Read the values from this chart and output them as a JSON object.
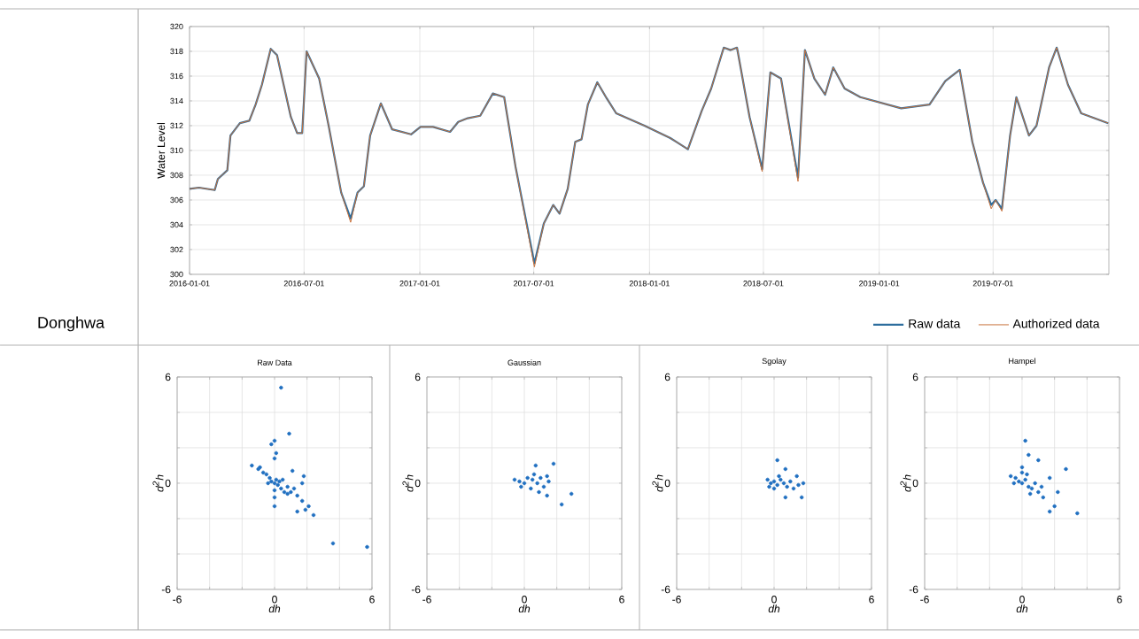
{
  "chart_data": [
    {
      "type": "other",
      "title": "Donghwa"
    },
    {
      "type": "line",
      "ylabel": "Water Level",
      "x": [
        "2016-01-01",
        "2016-01-16",
        "2016-02-10",
        "2016-02-15",
        "2016-03-01",
        "2016-03-06",
        "2016-03-21",
        "2016-04-05",
        "2016-04-15",
        "2016-04-25",
        "2016-05-09",
        "2016-05-19",
        "2016-06-10",
        "2016-06-20",
        "2016-06-28",
        "2016-07-05",
        "2016-07-25",
        "2016-08-09",
        "2016-08-29",
        "2016-09-13",
        "2016-09-24",
        "2016-10-04",
        "2016-10-14",
        "2016-10-31",
        "2016-11-18",
        "2016-12-18",
        "2017-01-02",
        "2017-01-22",
        "2017-02-18",
        "2017-03-03",
        "2017-03-18",
        "2017-04-07",
        "2017-04-27",
        "2017-05-15",
        "2017-06-02",
        "2017-07-02",
        "2017-07-17",
        "2017-08-01",
        "2017-08-11",
        "2017-08-24",
        "2017-09-05",
        "2017-09-15",
        "2017-09-25",
        "2017-10-10",
        "2017-10-25",
        "2017-11-09",
        "2017-12-24",
        "2018-02-03",
        "2018-03-03",
        "2018-03-25",
        "2018-04-09",
        "2018-04-29",
        "2018-05-10",
        "2018-05-20",
        "2018-06-09",
        "2018-06-29",
        "2018-07-12",
        "2018-07-29",
        "2018-08-25",
        "2018-09-05",
        "2018-09-20",
        "2018-10-07",
        "2018-10-20",
        "2018-11-07",
        "2018-12-02",
        "2019-02-05",
        "2019-03-22",
        "2019-04-16",
        "2019-05-09",
        "2019-05-29",
        "2019-06-15",
        "2019-06-28",
        "2019-07-05",
        "2019-07-15",
        "2019-07-28",
        "2019-08-07",
        "2019-08-27",
        "2019-09-08",
        "2019-09-28",
        "2019-10-10",
        "2019-10-28",
        "2019-11-18",
        "2019-12-31"
      ],
      "series": [
        {
          "name": "Raw data",
          "color": "#2e6e9e",
          "values": [
            306.9,
            307.0,
            306.8,
            307.7,
            308.4,
            311.2,
            312.2,
            312.4,
            313.7,
            315.3,
            318.2,
            317.7,
            312.7,
            311.4,
            311.4,
            318.0,
            315.8,
            312.0,
            306.6,
            304.5,
            306.6,
            307.1,
            311.2,
            313.8,
            311.7,
            311.3,
            311.9,
            311.9,
            311.5,
            312.3,
            312.6,
            312.8,
            314.6,
            314.3,
            308.7,
            300.9,
            304.1,
            305.6,
            304.9,
            306.9,
            310.7,
            310.9,
            313.7,
            315.5,
            314.2,
            313.0,
            312.0,
            311.0,
            310.1,
            313.2,
            315.0,
            318.3,
            318.1,
            318.3,
            312.7,
            308.5,
            316.3,
            315.8,
            307.8,
            318.1,
            315.8,
            314.5,
            316.7,
            315.0,
            314.3,
            313.4,
            313.7,
            315.6,
            316.5,
            310.7,
            307.4,
            305.6,
            306.0,
            305.3,
            311.2,
            314.3,
            311.2,
            312.0,
            316.7,
            318.3,
            315.3,
            313.0,
            312.2
          ]
        },
        {
          "name": "Authorized data",
          "color": "#c8703a",
          "values": [
            306.9,
            307.0,
            306.8,
            307.7,
            308.4,
            311.2,
            312.2,
            312.4,
            313.7,
            315.3,
            318.2,
            317.7,
            312.7,
            311.4,
            311.4,
            318.0,
            315.8,
            312.0,
            306.6,
            304.2,
            306.6,
            307.1,
            311.2,
            313.8,
            311.7,
            311.3,
            311.9,
            311.9,
            311.5,
            312.3,
            312.6,
            312.8,
            314.6,
            314.3,
            308.7,
            300.6,
            304.1,
            305.6,
            304.9,
            306.9,
            310.7,
            310.9,
            313.7,
            315.5,
            314.2,
            313.0,
            312.0,
            311.0,
            310.1,
            313.2,
            315.0,
            318.3,
            318.1,
            318.3,
            312.7,
            308.3,
            316.3,
            315.8,
            307.5,
            318.1,
            315.8,
            314.5,
            316.7,
            315.0,
            314.3,
            313.4,
            313.7,
            315.6,
            316.5,
            310.7,
            307.4,
            305.3,
            306.0,
            305.1,
            311.2,
            314.3,
            311.2,
            312.0,
            316.7,
            318.3,
            315.3,
            313.0,
            312.2
          ]
        }
      ],
      "xlim": [
        "2016-01-01",
        "2020-01-01"
      ],
      "xticks": [
        "2016-01-01",
        "2016-07-01",
        "2017-01-01",
        "2017-07-01",
        "2018-01-01",
        "2018-07-01",
        "2019-01-01",
        "2019-07-01"
      ],
      "ylim": [
        300,
        320
      ],
      "yticks": [
        300,
        302,
        304,
        306,
        308,
        310,
        312,
        314,
        316,
        318,
        320
      ],
      "grid": true,
      "legend": "bottom right"
    },
    {
      "type": "scatter",
      "title": "Raw Data",
      "xlabel": "dh",
      "ylabel": "d$^{2}$h",
      "color": "#1f6fc0",
      "marker": "circle",
      "grid": true,
      "x": [
        0.4,
        0.9,
        0,
        -0.2,
        0.1,
        0,
        -1.4,
        -0.9,
        1.1,
        1.8,
        -1,
        -0.7,
        -0.5,
        -0.3,
        0,
        0.2,
        0.4,
        0.6,
        0.8,
        1,
        -0.2,
        0.1,
        0.3,
        -0.4,
        0,
        0,
        0.5,
        0.8,
        1.2,
        0,
        1.7,
        1.4,
        1.7,
        1.4,
        2.1,
        1.9,
        2.4,
        3.6,
        5.7
      ],
      "values": [
        5.4,
        2.8,
        2.4,
        2.2,
        1.7,
        1.4,
        1.0,
        0.9,
        0.7,
        0.4,
        0.8,
        0.6,
        0.5,
        0.3,
        0,
        -0.1,
        -0.3,
        -0.5,
        -0.6,
        -0.5,
        0.1,
        0.2,
        0.1,
        0,
        -0.4,
        -0.8,
        0.2,
        -0.2,
        -0.3,
        -1.3,
        0,
        -0.7,
        -1.0,
        -1.6,
        -1.3,
        -1.5,
        -1.8,
        -3.4,
        -3.6
      ],
      "xlim": [
        -6,
        6
      ],
      "ylim": [
        -6,
        6
      ],
      "xticks": [
        -6,
        {
          "value": -4,
          "label": null
        },
        {
          "value": -2,
          "label": null
        },
        0,
        {
          "value": 2,
          "label": null
        },
        {
          "value": 4,
          "label": null
        },
        6
      ],
      "yticks": [
        -6,
        {
          "value": -4,
          "label": null
        },
        {
          "value": -2,
          "label": null
        },
        0,
        {
          "value": 2,
          "label": null
        },
        {
          "value": 4,
          "label": null
        },
        6
      ]
    },
    {
      "type": "scatter",
      "title": "Gaussian",
      "xlabel": "dh",
      "ylabel": "d$^{2}$h",
      "color": "#1f6fc0",
      "marker": "circle",
      "grid": true,
      "x": [
        0.7,
        1.8,
        2.3,
        2.9,
        1.4,
        -0.6,
        -0.3,
        0,
        0.2,
        0.5,
        0.8,
        1,
        1.2,
        0.4,
        0.6,
        1.5,
        0.9,
        1.4,
        -0.2
      ],
      "values": [
        1.0,
        1.1,
        -1.2,
        -0.6,
        -0.7,
        0.2,
        0.1,
        0,
        0.3,
        0.2,
        0,
        0.3,
        -0.2,
        -0.3,
        0.5,
        0.1,
        -0.5,
        0.4,
        -0.2
      ],
      "xlim": [
        -6,
        6
      ],
      "ylim": [
        -6,
        6
      ],
      "xticks": [
        -6,
        {
          "value": -4,
          "label": null
        },
        {
          "value": -2,
          "label": null
        },
        0,
        {
          "value": 2,
          "label": null
        },
        {
          "value": 4,
          "label": null
        },
        6
      ],
      "yticks": [
        -6,
        {
          "value": -4,
          "label": null
        },
        {
          "value": -2,
          "label": null
        },
        0,
        {
          "value": 2,
          "label": null
        },
        {
          "value": 4,
          "label": null
        },
        6
      ]
    },
    {
      "type": "scatter",
      "title": "Sgolay",
      "xlabel": "dh",
      "ylabel": "d$^{2}$h",
      "color": "#1f6fc0",
      "marker": "circle",
      "grid": true,
      "x": [
        0.2,
        0.7,
        1.4,
        1.8,
        1.7,
        0.7,
        -0.4,
        -0.2,
        0,
        0.2,
        0.4,
        0.6,
        0.8,
        1,
        1.2,
        0,
        0.3,
        1.5,
        -0.3
      ],
      "values": [
        1.3,
        0.8,
        0.4,
        0,
        -0.8,
        -0.8,
        0.2,
        0,
        0.1,
        -0.1,
        0.2,
        0,
        -0.2,
        0.1,
        -0.3,
        -0.3,
        0.4,
        -0.1,
        -0.2
      ],
      "xlim": [
        -6,
        6
      ],
      "ylim": [
        -6,
        6
      ],
      "xticks": [
        -6,
        {
          "value": -4,
          "label": null
        },
        {
          "value": -2,
          "label": null
        },
        0,
        {
          "value": 2,
          "label": null
        },
        {
          "value": 4,
          "label": null
        },
        6
      ],
      "yticks": [
        -6,
        {
          "value": -4,
          "label": null
        },
        {
          "value": -2,
          "label": null
        },
        0,
        {
          "value": 2,
          "label": null
        },
        {
          "value": 4,
          "label": null
        },
        6
      ]
    },
    {
      "type": "scatter",
      "title": "Hampel",
      "xlabel": "dh",
      "ylabel": "d$^{2}$h",
      "color": "#1f6fc0",
      "marker": "circle",
      "grid": true,
      "x": [
        0.2,
        0.4,
        1.0,
        2.7,
        0,
        1.7,
        2.2,
        2.0,
        1.7,
        3.4,
        1.3,
        -0.7,
        -0.4,
        -0.2,
        0,
        0.2,
        0.4,
        0.6,
        0.8,
        1,
        0.3,
        0,
        -0.5,
        1.2,
        0.5
      ],
      "values": [
        2.4,
        1.6,
        1.3,
        0.8,
        0.9,
        0.3,
        -0.5,
        -1.3,
        -1.6,
        -1.7,
        -0.8,
        0.4,
        0.3,
        0.1,
        0,
        0.2,
        -0.2,
        -0.3,
        0,
        -0.5,
        0.5,
        0.6,
        0,
        -0.2,
        -0.6
      ],
      "xlim": [
        -6,
        6
      ],
      "ylim": [
        -6,
        6
      ],
      "xticks": [
        -6,
        {
          "value": -4,
          "label": null
        },
        {
          "value": -2,
          "label": null
        },
        0,
        {
          "value": 2,
          "label": null
        },
        {
          "value": 4,
          "label": null
        },
        6
      ],
      "yticks": [
        -6,
        {
          "value": -4,
          "label": null
        },
        {
          "value": -2,
          "label": null
        },
        0,
        {
          "value": 2,
          "label": null
        },
        {
          "value": 4,
          "label": null
        },
        6
      ]
    }
  ]
}
